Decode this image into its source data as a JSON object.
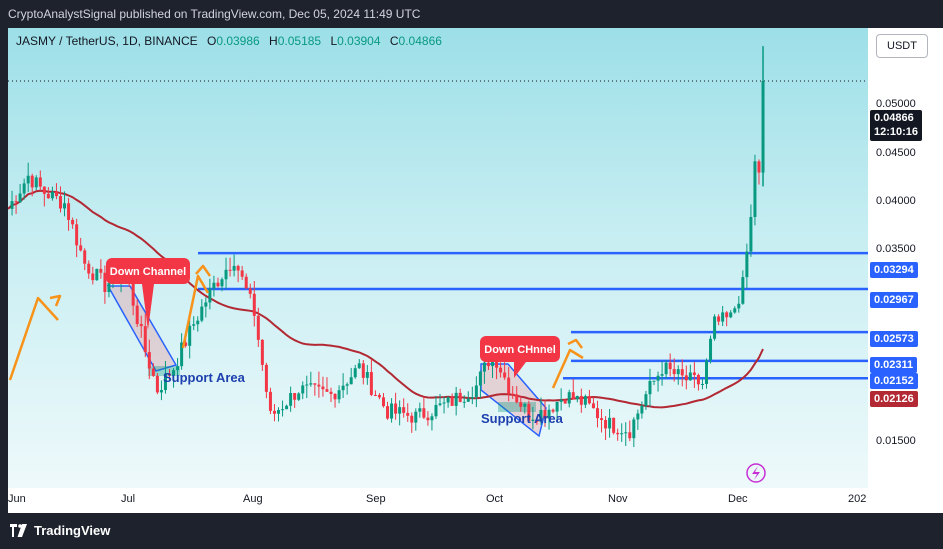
{
  "header": {
    "publisher_line": "CryptoAnalystSignal published on TradingView.com, Dec 05, 2024 11:49 UTC"
  },
  "legend": {
    "symbol": "JASMY / TetherUS, 1D, BINANCE",
    "open_label": "O",
    "open": "0.03986",
    "high_label": "H",
    "high": "0.05185",
    "low_label": "L",
    "low": "0.03904",
    "close_label": "C",
    "close": "0.04866"
  },
  "price_axis": {
    "currency": "USDT",
    "ticks": [
      "0.05000",
      "0.04500",
      "0.04000",
      "0.03500",
      "0.01500"
    ],
    "level_tags": [
      "0.03294",
      "0.02967",
      "0.02573",
      "0.02311",
      "0.02152"
    ],
    "ma_tag": "0.02126",
    "last_price": "0.04866",
    "countdown": "12:10:16"
  },
  "time_axis": {
    "labels": [
      "Jun",
      "Jul",
      "Aug",
      "Sep",
      "Oct",
      "Nov",
      "Dec",
      "202"
    ]
  },
  "annotations": {
    "down_channel_1": "Down Channel",
    "down_channel_2": "Down CHnnel",
    "support_1": "Support Area",
    "support_2": "Support Area"
  },
  "footer": {
    "brand": "TradingView"
  },
  "colors": {
    "up": "#089981",
    "down": "#f23645",
    "level": "#2962ff",
    "ma": "#b22833",
    "arrow": "#f7931a",
    "callout": "#f23645"
  },
  "chart_data": {
    "type": "candlestick",
    "symbol": "JASMY / TetherUS",
    "interval": "1D",
    "x_range": [
      "2024-06-01",
      "2024-12-31"
    ],
    "ylim": [
      0.0115,
      0.0535
    ],
    "last_close": 0.04866,
    "horizontal_levels": [
      0.03294,
      0.02967,
      0.02573,
      0.02311,
      0.02152
    ],
    "moving_average_last": 0.02126,
    "close_path_approx": [
      [
        "2024-06-01",
        0.037
      ],
      [
        "2024-06-06",
        0.04
      ],
      [
        "2024-06-10",
        0.0385
      ],
      [
        "2024-06-15",
        0.0375
      ],
      [
        "2024-06-20",
        0.032
      ],
      [
        "2024-06-25",
        0.03
      ],
      [
        "2024-06-30",
        0.0315
      ],
      [
        "2024-07-05",
        0.024
      ],
      [
        "2024-07-08",
        0.0205
      ],
      [
        "2024-07-12",
        0.0225
      ],
      [
        "2024-07-17",
        0.0265
      ],
      [
        "2024-07-22",
        0.03
      ],
      [
        "2024-07-27",
        0.0325
      ],
      [
        "2024-08-01",
        0.0275
      ],
      [
        "2024-08-05",
        0.018
      ],
      [
        "2024-08-12",
        0.0205
      ],
      [
        "2024-08-20",
        0.02
      ],
      [
        "2024-08-27",
        0.0225
      ],
      [
        "2024-09-03",
        0.0185
      ],
      [
        "2024-09-10",
        0.018
      ],
      [
        "2024-09-18",
        0.0192
      ],
      [
        "2024-09-25",
        0.0208
      ],
      [
        "2024-09-29",
        0.024
      ],
      [
        "2024-10-03",
        0.0208
      ],
      [
        "2024-10-08",
        0.0182
      ],
      [
        "2024-10-12",
        0.0185
      ],
      [
        "2024-10-17",
        0.02
      ],
      [
        "2024-10-22",
        0.0192
      ],
      [
        "2024-10-28",
        0.0173
      ],
      [
        "2024-11-02",
        0.0168
      ],
      [
        "2024-11-06",
        0.02
      ],
      [
        "2024-11-10",
        0.0225
      ],
      [
        "2024-11-15",
        0.0215
      ],
      [
        "2024-11-20",
        0.021
      ],
      [
        "2024-11-23",
        0.0265
      ],
      [
        "2024-11-27",
        0.027
      ],
      [
        "2024-11-30",
        0.03
      ],
      [
        "2024-12-02",
        0.036
      ],
      [
        "2024-12-03",
        0.0415
      ],
      [
        "2024-12-04",
        0.0399
      ],
      [
        "2024-12-05",
        0.04866
      ]
    ]
  }
}
